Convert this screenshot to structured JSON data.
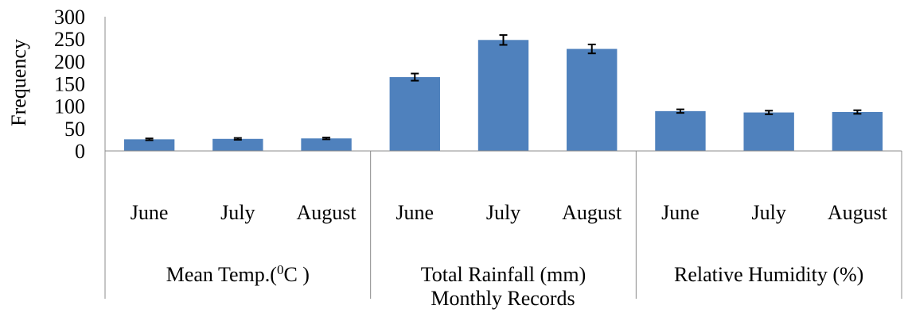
{
  "chart_data": {
    "type": "bar",
    "title": "",
    "ylabel": "Frequency",
    "xlabel": "Monthly Records",
    "ylim": [
      0,
      300
    ],
    "yticks": [
      0,
      50,
      100,
      150,
      200,
      250,
      300
    ],
    "grid": false,
    "legend": "none",
    "bar_color": "#4F81BD",
    "groups": [
      {
        "label_main": "Mean Temp.(",
        "label_sup": "0",
        "label_tail": "C )",
        "categories": [
          "June",
          "July",
          "August"
        ],
        "values": [
          26,
          27,
          28
        ],
        "errors": [
          2,
          2,
          2
        ]
      },
      {
        "label": "Total Rainfall (mm)",
        "categories": [
          "June",
          "July",
          "August"
        ],
        "values": [
          165,
          248,
          228
        ],
        "errors": [
          8,
          11,
          10
        ]
      },
      {
        "label": "Relative Humidity (%)",
        "categories": [
          "June",
          "July",
          "August"
        ],
        "values": [
          89,
          86,
          87
        ],
        "errors": [
          4,
          4,
          4
        ]
      }
    ]
  }
}
